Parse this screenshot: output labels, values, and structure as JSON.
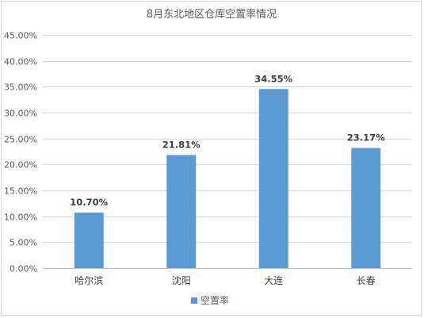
{
  "chart_data": {
    "type": "bar",
    "title": "8月东北地区仓库空置率情况",
    "categories": [
      "哈尔滨",
      "沈阳",
      "大连",
      "长春"
    ],
    "series": [
      {
        "name": "空置率",
        "values": [
          10.7,
          21.81,
          34.55,
          23.17
        ],
        "color": "#5b9bd5"
      }
    ],
    "data_labels": [
      "10.70%",
      "21.81%",
      "34.55%",
      "23.17%"
    ],
    "y_ticks": [
      "0.00%",
      "5.00%",
      "10.00%",
      "15.00%",
      "20.00%",
      "25.00%",
      "30.00%",
      "35.00%",
      "40.00%",
      "45.00%"
    ],
    "ylim": [
      0,
      45
    ],
    "grid": true,
    "legend_position": "bottom"
  }
}
